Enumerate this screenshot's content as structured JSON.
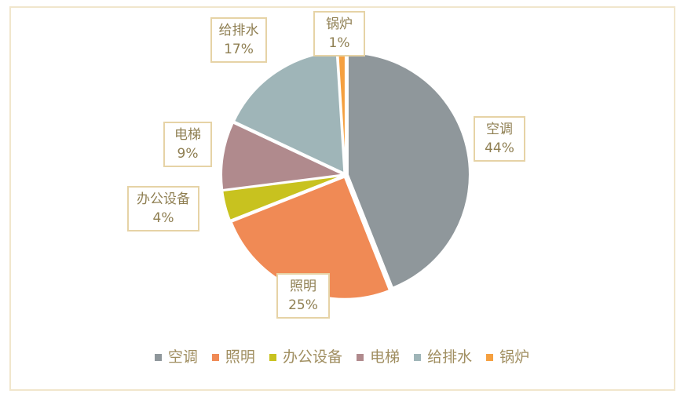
{
  "chart_data": {
    "type": "pie",
    "start": "top",
    "direction": "clockwise",
    "legend_position": "bottom",
    "slices": [
      {
        "name": "空调",
        "value": 44,
        "label": "44%",
        "color": "#8f979b"
      },
      {
        "name": "照明",
        "value": 25,
        "label": "25%",
        "color": "#f08a55"
      },
      {
        "name": "办公设备",
        "value": 4,
        "label": "4%",
        "color": "#c8c21f"
      },
      {
        "name": "电梯",
        "value": 9,
        "label": "9%",
        "color": "#b08a8d"
      },
      {
        "name": "给排水",
        "value": 17,
        "label": "17%",
        "color": "#9fb5b8"
      },
      {
        "name": "锅炉",
        "value": 1,
        "label": "1%",
        "color": "#f5a040"
      }
    ]
  }
}
